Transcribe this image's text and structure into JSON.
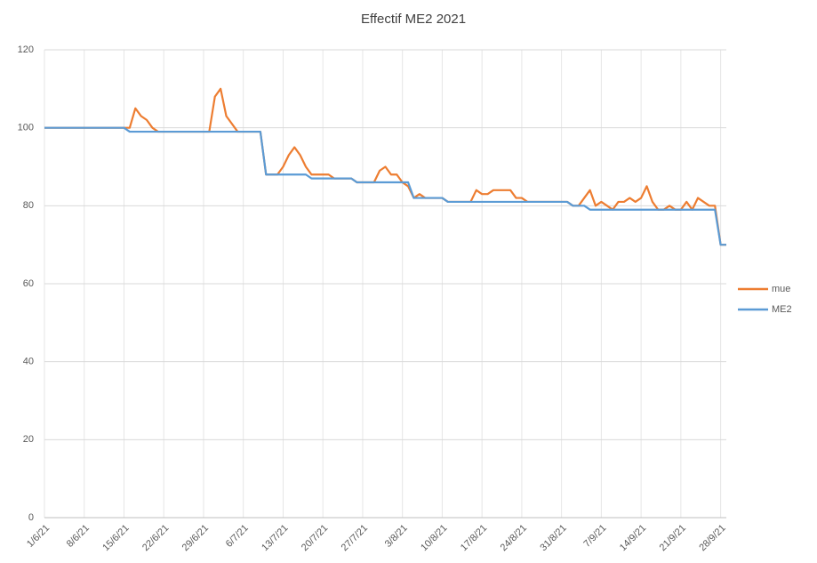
{
  "chart_data": {
    "type": "line",
    "title": "Effectif ME2 2021",
    "categories": [
      "1/6/21",
      null,
      null,
      null,
      null,
      null,
      null,
      "8/6/21",
      null,
      null,
      null,
      null,
      null,
      null,
      "15/6/21",
      null,
      null,
      null,
      null,
      null,
      null,
      "22/6/21",
      null,
      null,
      null,
      null,
      null,
      null,
      "29/6/21",
      null,
      null,
      null,
      null,
      null,
      null,
      "6/7/21",
      null,
      null,
      null,
      null,
      null,
      null,
      "13/7/21",
      null,
      null,
      null,
      null,
      null,
      null,
      "20/7/21",
      null,
      null,
      null,
      null,
      null,
      null,
      "27/7/21",
      null,
      null,
      null,
      null,
      null,
      null,
      "3/8/21",
      null,
      null,
      null,
      null,
      null,
      null,
      "10/8/21",
      null,
      null,
      null,
      null,
      null,
      null,
      "17/8/21",
      null,
      null,
      null,
      null,
      null,
      null,
      "24/8/21",
      null,
      null,
      null,
      null,
      null,
      null,
      "31/8/21",
      null,
      null,
      null,
      null,
      null,
      null,
      "7/9/21",
      null,
      null,
      null,
      null,
      null,
      null,
      "14/9/21",
      null,
      null,
      null,
      null,
      null,
      null,
      "21/9/21",
      null,
      null,
      null,
      null,
      null,
      null,
      "28/9/21",
      null
    ],
    "series": [
      {
        "name": "mue",
        "color": "#ed7d31",
        "values": [
          100,
          100,
          100,
          100,
          100,
          100,
          100,
          100,
          100,
          100,
          100,
          100,
          100,
          100,
          100,
          100,
          105,
          103,
          102,
          100,
          99,
          99,
          99,
          99,
          99,
          99,
          99,
          99,
          99,
          99,
          108,
          110,
          103,
          101,
          99,
          99,
          99,
          99,
          99,
          88,
          88,
          88,
          90,
          93,
          95,
          93,
          90,
          88,
          88,
          88,
          88,
          87,
          87,
          87,
          87,
          86,
          86,
          86,
          86,
          89,
          90,
          88,
          88,
          86,
          85,
          82,
          83,
          82,
          82,
          82,
          82,
          81,
          81,
          81,
          81,
          81,
          84,
          83,
          83,
          84,
          84,
          84,
          84,
          82,
          82,
          81,
          81,
          81,
          81,
          81,
          81,
          81,
          81,
          80,
          80,
          82,
          84,
          80,
          81,
          80,
          79,
          81,
          81,
          82,
          81,
          82,
          85,
          81,
          79,
          79,
          80,
          79,
          79,
          81,
          79,
          82,
          81,
          80,
          80,
          70,
          70
        ]
      },
      {
        "name": "ME2",
        "color": "#5b9bd5",
        "values": [
          100,
          100,
          100,
          100,
          100,
          100,
          100,
          100,
          100,
          100,
          100,
          100,
          100,
          100,
          100,
          99,
          99,
          99,
          99,
          99,
          99,
          99,
          99,
          99,
          99,
          99,
          99,
          99,
          99,
          99,
          99,
          99,
          99,
          99,
          99,
          99,
          99,
          99,
          99,
          88,
          88,
          88,
          88,
          88,
          88,
          88,
          88,
          87,
          87,
          87,
          87,
          87,
          87,
          87,
          87,
          86,
          86,
          86,
          86,
          86,
          86,
          86,
          86,
          86,
          86,
          82,
          82,
          82,
          82,
          82,
          82,
          81,
          81,
          81,
          81,
          81,
          81,
          81,
          81,
          81,
          81,
          81,
          81,
          81,
          81,
          81,
          81,
          81,
          81,
          81,
          81,
          81,
          81,
          80,
          80,
          80,
          79,
          79,
          79,
          79,
          79,
          79,
          79,
          79,
          79,
          79,
          79,
          79,
          79,
          79,
          79,
          79,
          79,
          79,
          79,
          79,
          79,
          79,
          79,
          70,
          70
        ]
      }
    ],
    "ylim": [
      0,
      120
    ],
    "yticks": [
      0,
      20,
      40,
      60,
      80,
      100,
      120
    ],
    "grid": true,
    "legend": "right"
  }
}
